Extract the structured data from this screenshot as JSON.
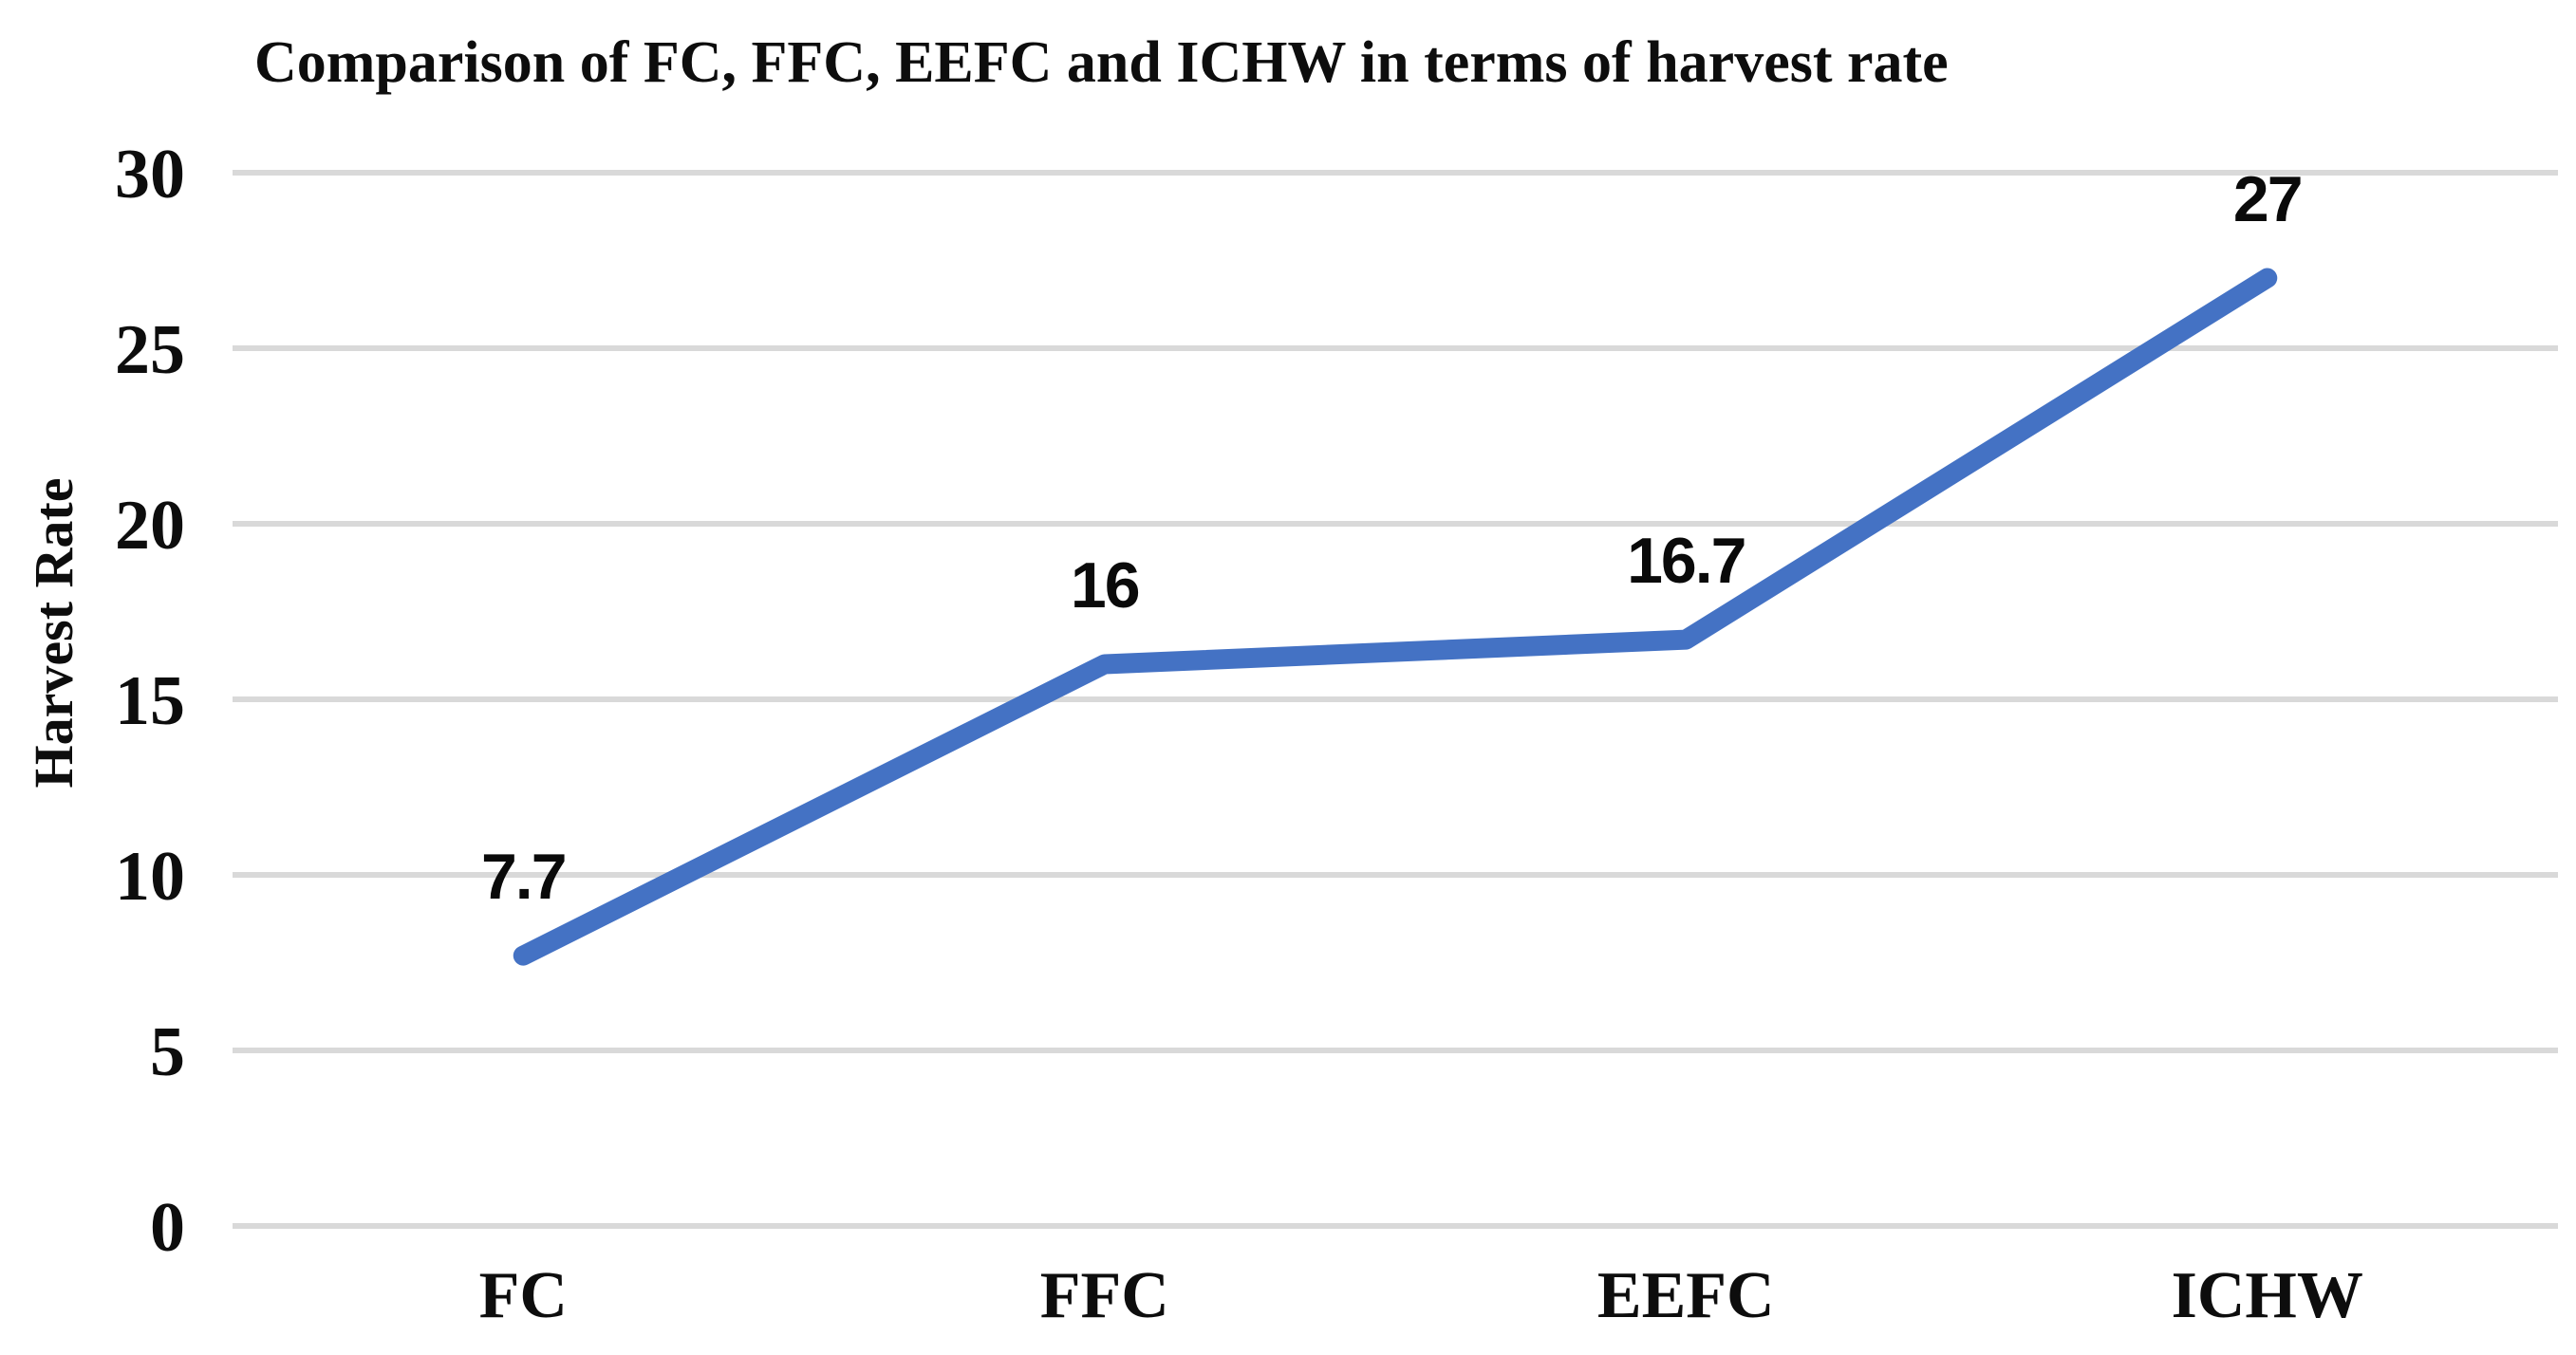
{
  "chart_data": {
    "type": "line",
    "title": "Comparison of FC, FFC, EEFC and ICHW in terms of harvest rate",
    "xlabel": "",
    "ylabel": "Harvest Rate",
    "categories": [
      "FC",
      "FFC",
      "EEFC",
      "ICHW"
    ],
    "series": [
      {
        "name": "Harvest Rate",
        "values": [
          7.7,
          16,
          16.7,
          27
        ],
        "data_labels": [
          "7.7",
          "16",
          "16.7",
          "27"
        ]
      }
    ],
    "yticks": [
      0,
      5,
      10,
      15,
      20,
      25,
      30
    ],
    "ylim": [
      0,
      30
    ],
    "grid": "horizontal-only",
    "legend_position": "none",
    "colors": {
      "line": "#4472C4",
      "gridline": "#d9d9d9",
      "text": "#0d0d0d",
      "background": "#ffffff"
    }
  }
}
